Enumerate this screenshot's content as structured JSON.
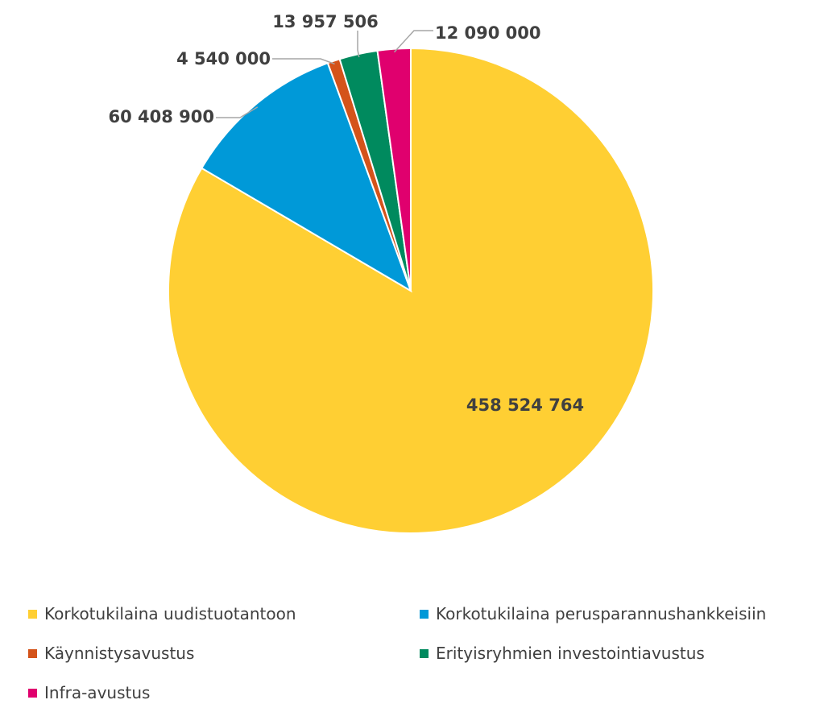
{
  "chart_data": {
    "type": "pie",
    "title": "",
    "slices": [
      {
        "name": "Korkotukilaina uudistuotantoon",
        "value": 458524764,
        "label": "458 524 764",
        "color": "#FFCF33"
      },
      {
        "name": "Korkotukilaina perusparannushankkeisiin",
        "value": 60408900,
        "label": "60 408 900",
        "color": "#0099D8"
      },
      {
        "name": "Käynnistysavustus",
        "value": 4540000,
        "label": "4 540 000",
        "color": "#D4531A"
      },
      {
        "name": "Erityisryhmien investointiavustus",
        "value": 13957506,
        "label": "13 957 506",
        "color": "#008A5E"
      },
      {
        "name": "Infra-avustus",
        "value": 12090000,
        "label": "12 090 000",
        "color": "#E0006E"
      }
    ],
    "legend_position": "bottom"
  }
}
